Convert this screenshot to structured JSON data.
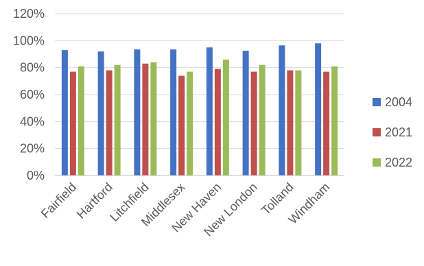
{
  "chart_data": {
    "type": "bar",
    "title": "",
    "xlabel": "",
    "ylabel": "",
    "ylim": [
      0,
      1.2
    ],
    "yticks": [
      0,
      0.2,
      0.4,
      0.6,
      0.8,
      1.0,
      1.2
    ],
    "ytick_labels": [
      "0%",
      "20%",
      "40%",
      "60%",
      "80%",
      "100%",
      "120%"
    ],
    "grid": true,
    "legend_position": "right",
    "categories": [
      "Fairfield",
      "Hartford",
      "Litchfield",
      "Middlesex",
      "New Haven",
      "New London",
      "Tolland",
      "Windham"
    ],
    "series": [
      {
        "name": "2004",
        "color": "#4472c4",
        "values": [
          0.93,
          0.92,
          0.935,
          0.935,
          0.95,
          0.925,
          0.965,
          0.98
        ]
      },
      {
        "name": "2021",
        "color": "#c0504d",
        "values": [
          0.77,
          0.78,
          0.83,
          0.74,
          0.79,
          0.77,
          0.78,
          0.77
        ]
      },
      {
        "name": "2022",
        "color": "#9bbb59",
        "values": [
          0.81,
          0.82,
          0.84,
          0.77,
          0.86,
          0.82,
          0.78,
          0.81
        ]
      }
    ]
  }
}
